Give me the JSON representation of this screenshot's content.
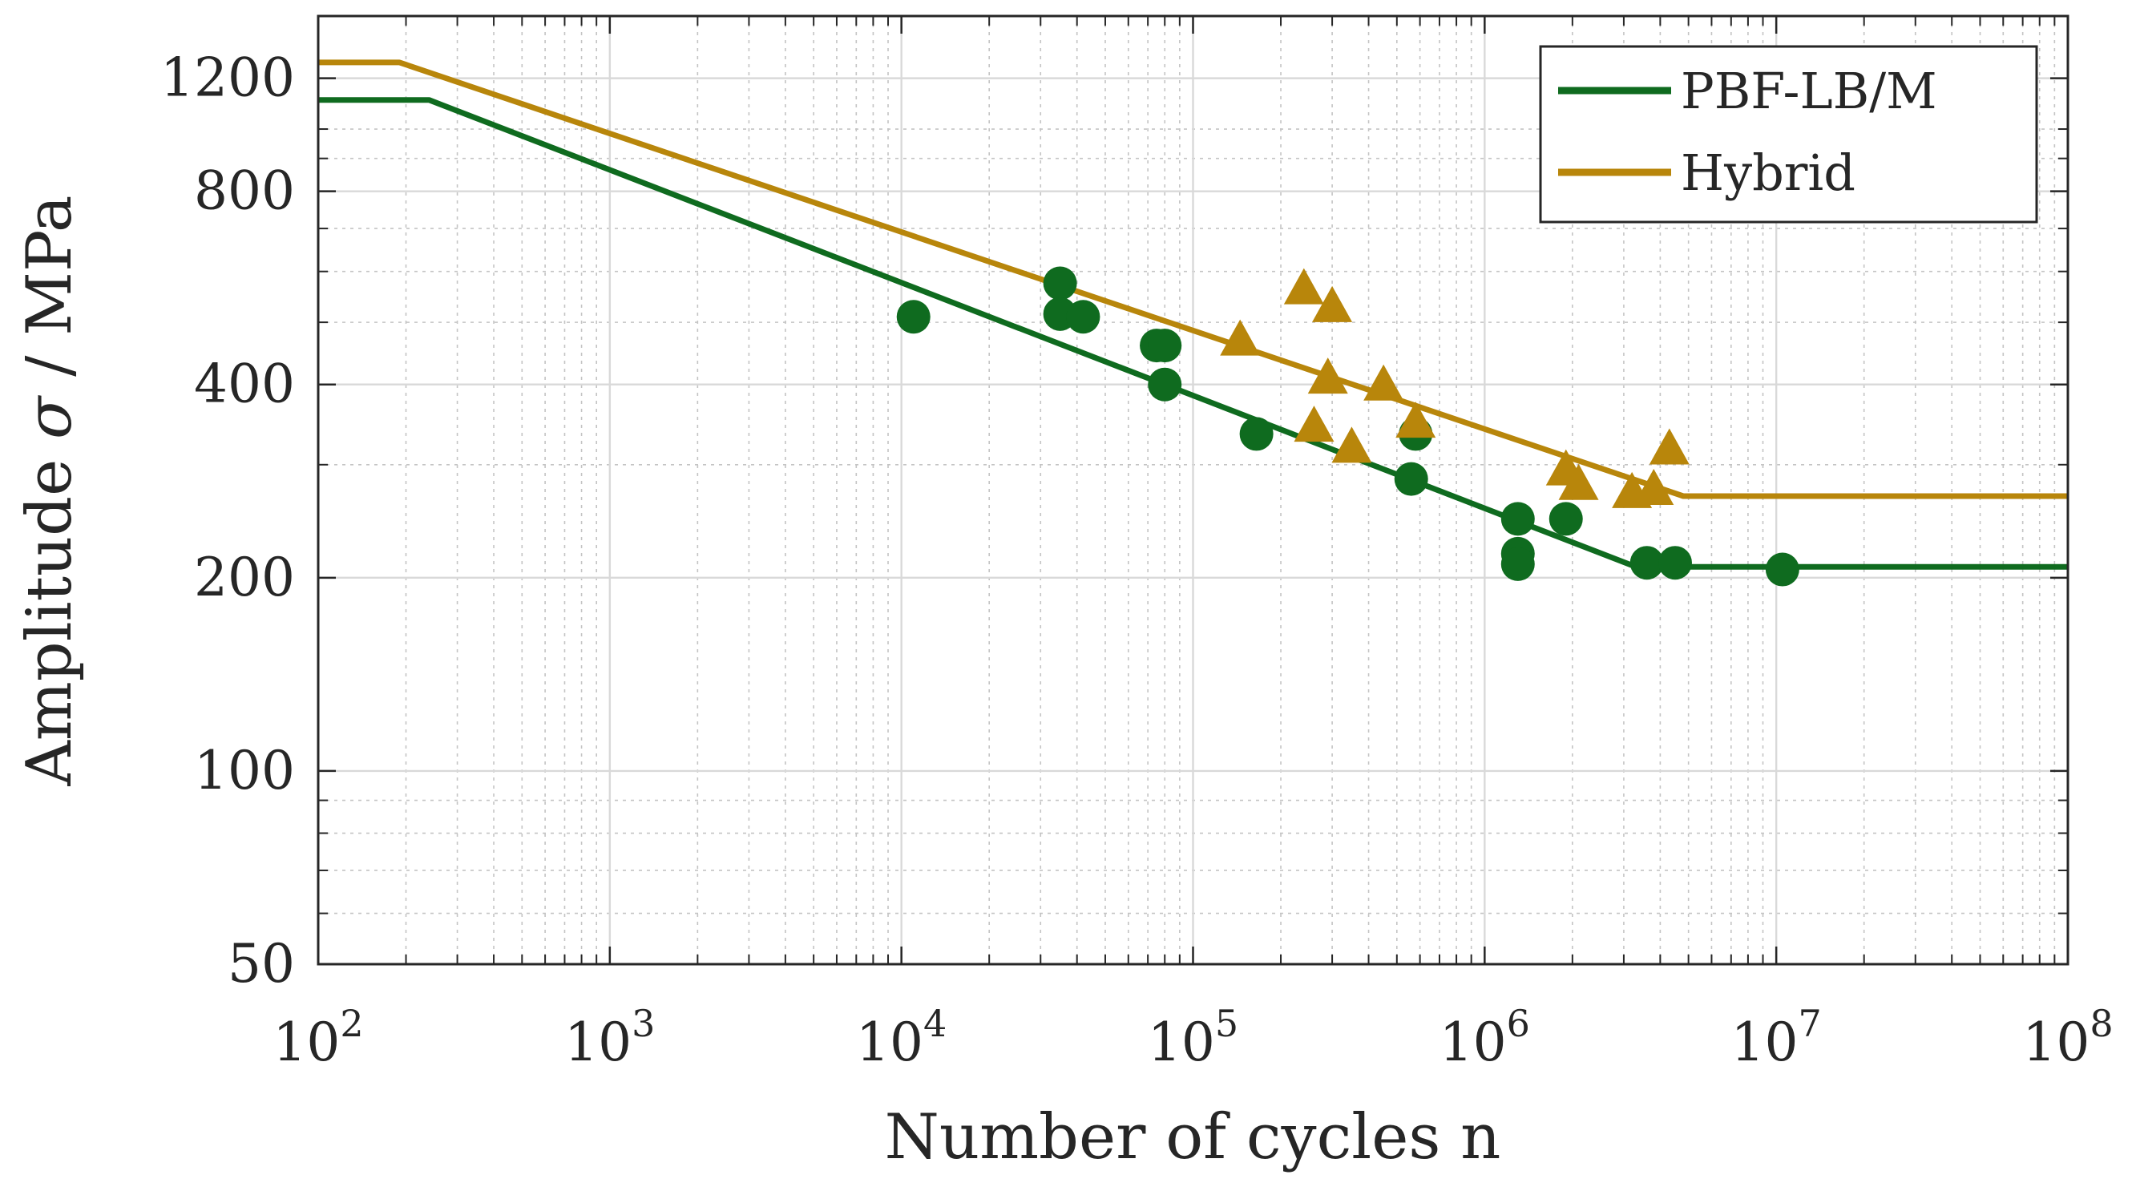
{
  "chart_data": {
    "type": "scatter",
    "xscale": "log",
    "yscale": "log",
    "xlim": [
      100,
      100000000
    ],
    "ylim": [
      50,
      1500
    ],
    "xlabel": "Number of cycles n",
    "ylabel_text": "Amplitude",
    "ylabel_symbol": "σ",
    "ylabel_unit": "/ MPa",
    "x_ticks": [
      {
        "value": 100,
        "base": "10",
        "exp": "2"
      },
      {
        "value": 1000,
        "base": "10",
        "exp": "3"
      },
      {
        "value": 10000,
        "base": "10",
        "exp": "4"
      },
      {
        "value": 100000,
        "base": "10",
        "exp": "5"
      },
      {
        "value": 1000000,
        "base": "10",
        "exp": "6"
      },
      {
        "value": 10000000,
        "base": "10",
        "exp": "7"
      },
      {
        "value": 100000000,
        "base": "10",
        "exp": "8"
      }
    ],
    "y_ticks": [
      {
        "value": 50,
        "label": "50"
      },
      {
        "value": 100,
        "label": "100"
      },
      {
        "value": 200,
        "label": "200"
      },
      {
        "value": 400,
        "label": "400"
      },
      {
        "value": 800,
        "label": "800"
      },
      {
        "value": 1200,
        "label": "1200"
      }
    ],
    "grid": true,
    "legend_position": "top-right",
    "series": [
      {
        "name": "PBF-LB/M",
        "color": "#0f6b1f",
        "marker": "circle",
        "points": [
          [
            11000,
            510
          ],
          [
            35000,
            575
          ],
          [
            35000,
            515
          ],
          [
            42000,
            510
          ],
          [
            75000,
            460
          ],
          [
            80000,
            460
          ],
          [
            80000,
            400
          ],
          [
            165000,
            335
          ],
          [
            560000,
            285
          ],
          [
            580000,
            335
          ],
          [
            1300000,
            247
          ],
          [
            1300000,
            218
          ],
          [
            1300000,
            210
          ],
          [
            1900000,
            247
          ],
          [
            3600000,
            211
          ],
          [
            4500000,
            211
          ],
          [
            10500000,
            206
          ]
        ],
        "fit_line": [
          [
            100,
            1110
          ],
          [
            240,
            1110
          ],
          [
            3300000,
            208
          ],
          [
            100000000,
            208
          ]
        ]
      },
      {
        "name": "Hybrid",
        "color": "#b8860b",
        "marker": "triangle",
        "points": [
          [
            145000,
            470
          ],
          [
            240000,
            565
          ],
          [
            300000,
            530
          ],
          [
            260000,
            345
          ],
          [
            290000,
            410
          ],
          [
            350000,
            320
          ],
          [
            450000,
            400
          ],
          [
            580000,
            350
          ],
          [
            1900000,
            295
          ],
          [
            2100000,
            280
          ],
          [
            3200000,
            272
          ],
          [
            3800000,
            275
          ],
          [
            4300000,
            318
          ]
        ],
        "fit_line": [
          [
            100,
            1270
          ],
          [
            190,
            1270
          ],
          [
            4800000,
            268
          ],
          [
            100000000,
            268
          ]
        ]
      }
    ]
  }
}
